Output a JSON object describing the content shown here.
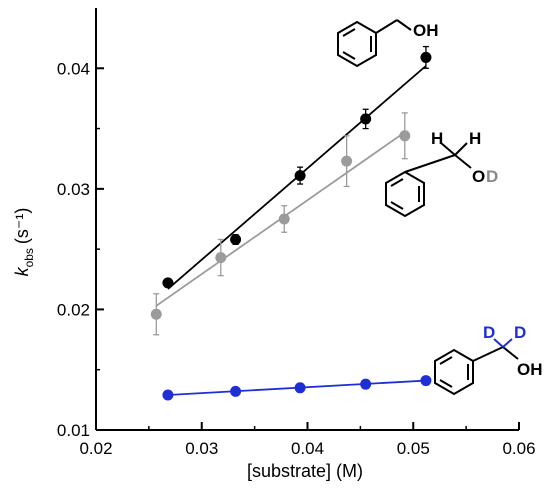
{
  "chart_data": {
    "type": "scatter",
    "xlabel": "[substrate] (M)",
    "ylabel_main": "k",
    "ylabel_sub": "obs",
    "ylabel_unit": "(s⁻¹)",
    "xlim": [
      0.02,
      0.06
    ],
    "ylim": [
      0.01,
      0.045
    ],
    "xticks": [
      "0.02",
      "0.03",
      "0.04",
      "0.05",
      "0.06"
    ],
    "yticks": [
      "0.01",
      "0.02",
      "0.03",
      "0.04"
    ],
    "grid": false,
    "series": [
      {
        "name": "PhCH2OH",
        "color": "#000000",
        "x": [
          0.0268,
          0.0332,
          0.0393,
          0.0455,
          0.0512
        ],
        "y": [
          0.0222,
          0.0258,
          0.0311,
          0.0358,
          0.0409
        ],
        "err": [
          0.0003,
          0.0004,
          0.0007,
          0.0008,
          0.0009
        ],
        "fit": [
          [
            0.0268,
            0.0217
          ],
          [
            0.0512,
            0.0402
          ]
        ]
      },
      {
        "name": "PhCH2OD",
        "color": "#9b9b9b",
        "x": [
          0.0257,
          0.0318,
          0.0378,
          0.0437,
          0.0492
        ],
        "y": [
          0.0196,
          0.0243,
          0.0275,
          0.0323,
          0.0344
        ],
        "err": [
          0.0017,
          0.0015,
          0.0011,
          0.0021,
          0.0019
        ],
        "fit": [
          [
            0.0257,
            0.0203
          ],
          [
            0.0492,
            0.0347
          ]
        ]
      },
      {
        "name": "PhCD2OH",
        "color": "#1f2fd6",
        "x": [
          0.0268,
          0.0332,
          0.0393,
          0.0455,
          0.0512
        ],
        "y": [
          0.0129,
          0.0132,
          0.0135,
          0.0138,
          0.0141
        ],
        "err": [
          0,
          0,
          0,
          0,
          0
        ],
        "fit": [
          [
            0.0268,
            0.0129
          ],
          [
            0.0512,
            0.0141
          ]
        ]
      }
    ],
    "annotations": [
      {
        "id": "oh1",
        "text": "OH",
        "color": "#000000"
      },
      {
        "id": "h1",
        "text": "H",
        "color": "#000000"
      },
      {
        "id": "h2",
        "text": "H",
        "color": "#000000"
      },
      {
        "id": "o2",
        "text": "O",
        "color": "#000000"
      },
      {
        "id": "d2",
        "text": "D",
        "color": "#8a8a8a"
      },
      {
        "id": "d3a",
        "text": "D",
        "color": "#1f2fd6"
      },
      {
        "id": "d3b",
        "text": "D",
        "color": "#1f2fd6"
      },
      {
        "id": "oh3",
        "text": "OH",
        "color": "#000000"
      }
    ]
  }
}
